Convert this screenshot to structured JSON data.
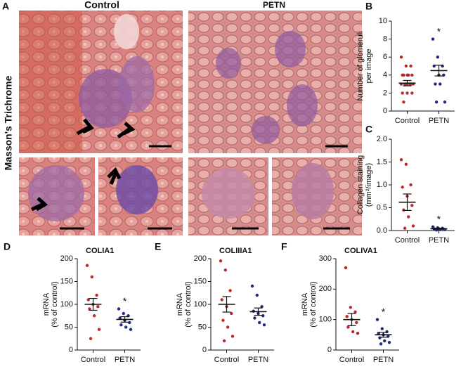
{
  "panel_a": {
    "panel": "A",
    "labels": [
      "Control",
      "PETN"
    ],
    "stain": "Masson's Trichrome"
  },
  "chart_data": [
    {
      "type": "scatter",
      "panel": "B",
      "ylabel": [
        "Number of glomeruli",
        "per image"
      ],
      "categories": [
        "Control",
        "PETN"
      ],
      "series": [
        {
          "color": "#b52a2a",
          "values": [
            6,
            5,
            5,
            4,
            4,
            4,
            4,
            4,
            3,
            3,
            3,
            3,
            3,
            3,
            2,
            2,
            2,
            1
          ],
          "mean": 3.1,
          "sem": 0.3
        },
        {
          "color": "#1f2a7a",
          "values": [
            8,
            6,
            5,
            5,
            4,
            4,
            3,
            3,
            1,
            1
          ],
          "mean": 4.5,
          "sem": 0.6
        }
      ],
      "ylim": [
        0,
        10
      ],
      "yticks": [
        0,
        2,
        4,
        6,
        8,
        10
      ],
      "annotation": "*"
    },
    {
      "type": "scatter",
      "panel": "C",
      "ylabel": [
        "Collagen staining",
        "(mm²/image)"
      ],
      "categories": [
        "Control",
        "PETN"
      ],
      "series": [
        {
          "color": "#b52a2a",
          "values": [
            1.55,
            1.45,
            1.0,
            0.95,
            0.75,
            0.55,
            0.45,
            0.3,
            0.1,
            0.05
          ],
          "mean": 0.62,
          "sem": 0.18
        },
        {
          "color": "#1f2a7a",
          "values": [
            0.08,
            0.06,
            0.05,
            0.04,
            0.04,
            0.03,
            0.03,
            0.02,
            0.02,
            0.01
          ],
          "mean": 0.04,
          "sem": 0.01
        }
      ],
      "ylim": [
        0,
        2
      ],
      "yticks": [
        {
          "value": 0,
          "label": "0.0"
        },
        {
          "value": 0.5,
          "label": "0.5"
        },
        {
          "value": 1,
          "label": "1.0"
        },
        {
          "value": 1.5,
          "label": "1.5"
        },
        {
          "value": 2,
          "label": "2.0"
        }
      ],
      "annotation": "*"
    },
    {
      "type": "scatter",
      "panel": "D",
      "title": "COLIA1",
      "ylabel": [
        "mRNA",
        "(% of control)"
      ],
      "categories": [
        "Control",
        "PETN"
      ],
      "series": [
        {
          "color": "#b52a2a",
          "values": [
            185,
            160,
            120,
            110,
            100,
            95,
            90,
            75,
            45,
            25
          ],
          "mean": 100,
          "sem": 13
        },
        {
          "color": "#1f2a7a",
          "values": [
            90,
            80,
            75,
            70,
            65,
            60,
            55,
            50,
            45
          ],
          "mean": 67,
          "sem": 6
        }
      ],
      "ylim": [
        0,
        200
      ],
      "yticks": [
        0,
        50,
        100,
        150,
        200
      ],
      "annotation": "*"
    },
    {
      "type": "scatter",
      "panel": "E",
      "title": "COLIIIA1",
      "ylabel": [
        "mRNA",
        "(% of control)"
      ],
      "categories": [
        "Control",
        "PETN"
      ],
      "series": [
        {
          "color": "#b52a2a",
          "values": [
            195,
            175,
            130,
            110,
            95,
            80,
            65,
            50,
            30,
            20
          ],
          "mean": 100,
          "sem": 17
        },
        {
          "color": "#1f2a7a",
          "values": [
            140,
            120,
            95,
            85,
            80,
            75,
            70,
            60,
            55
          ],
          "mean": 84,
          "sem": 8
        }
      ],
      "ylim": [
        0,
        200
      ],
      "yticks": [
        0,
        50,
        100,
        150,
        200
      ]
    },
    {
      "type": "scatter",
      "panel": "F",
      "title": "COLIVA1",
      "ylabel": [
        "mRNA",
        "(% of control)"
      ],
      "categories": [
        "Control",
        "PETN"
      ],
      "series": [
        {
          "color": "#b52a2a",
          "values": [
            270,
            140,
            125,
            110,
            100,
            90,
            75,
            60,
            55
          ],
          "mean": 100,
          "sem": 20
        },
        {
          "color": "#1f2a7a",
          "values": [
            100,
            70,
            60,
            55,
            50,
            45,
            40,
            30,
            25,
            20
          ],
          "mean": 50,
          "sem": 8
        }
      ],
      "ylim": [
        0,
        300
      ],
      "yticks": [
        0,
        100,
        200,
        300
      ],
      "annotation": "*"
    }
  ]
}
